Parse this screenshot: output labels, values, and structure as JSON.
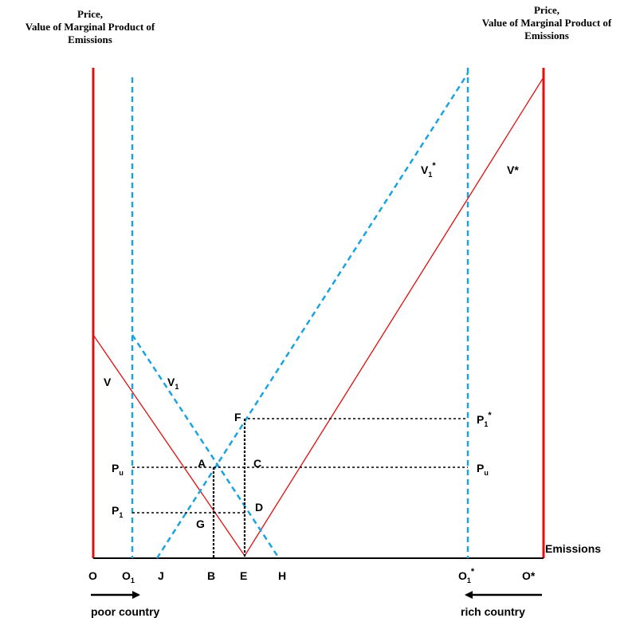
{
  "colors": {
    "axis": "#e11010",
    "curve": "#e11010",
    "dashed_blue": "#1aa3e0",
    "dotted": "#000000",
    "background": "#ffffff"
  },
  "headings": {
    "left": {
      "line1": "Price,",
      "line2": "Value of Marginal Product of",
      "line3": "Emissions"
    },
    "right": {
      "line1": "Price,",
      "line2": "Value of Marginal Product of",
      "line3": "Emissions"
    }
  },
  "axis_label": "Emissions",
  "curves": {
    "V": "V",
    "V1": {
      "base": "V",
      "sub": "1"
    },
    "V1star": {
      "base": "V",
      "sub": "1",
      "sup": "*"
    },
    "Vstar": "V*"
  },
  "points": {
    "F": "F",
    "A": "A",
    "C": "C",
    "D": "D",
    "G": "G"
  },
  "prices": {
    "Pu_left": {
      "base": "P",
      "sub": "u"
    },
    "P1_left": {
      "base": "P",
      "sub": "1"
    },
    "P1star": {
      "base": "P",
      "sub": "1",
      "sup": "*"
    },
    "Pu_right": {
      "base": "P",
      "sub": "u"
    }
  },
  "x_ticks": {
    "O": "O",
    "O1": {
      "base": "O",
      "sub": "1"
    },
    "J": "J",
    "B": "B",
    "E": "E",
    "H": "H",
    "O1star": {
      "base": "O",
      "sub": "1",
      "sup": "*"
    },
    "Ostar": "O*"
  },
  "arrows": {
    "poor": "poor country",
    "rich": "rich country"
  }
}
